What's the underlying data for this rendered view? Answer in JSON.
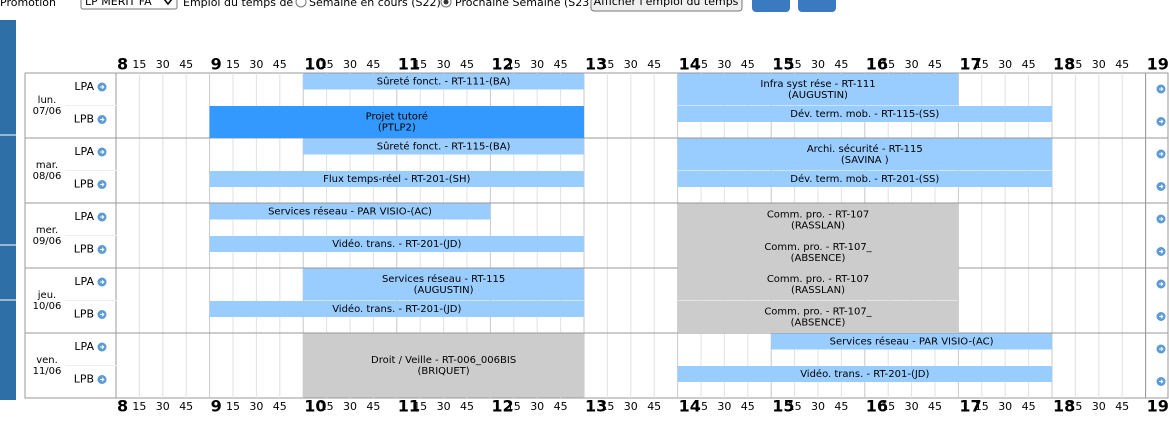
{
  "header": {
    "promotion_label": "Promotion",
    "promotion_value": "LP MERIT FA",
    "schedule_label": "Emploi du temps de :",
    "option_current": "Semaine en cours (S22)",
    "option_next": "Prochaine Semaine (S23)",
    "button": "Afficher l'emploi du temps"
  },
  "scale": [
    "8",
    "15",
    "30",
    "45",
    "9",
    "15",
    "30",
    "45",
    "10",
    "15",
    "30",
    "45",
    "11",
    "15",
    "30",
    "45",
    "12",
    "15",
    "30",
    "45",
    "13",
    "15",
    "30",
    "45",
    "14",
    "15",
    "30",
    "45",
    "15",
    "15",
    "30",
    "45",
    "16",
    "15",
    "30",
    "45",
    "17",
    "15",
    "30",
    "45",
    "18",
    "15",
    "30",
    "45",
    "19"
  ],
  "days": [
    {
      "name": "lun.",
      "date": "07/06",
      "groups": [
        "LPA",
        "LPB"
      ]
    },
    {
      "name": "mar.",
      "date": "08/06",
      "groups": [
        "LPA",
        "LPB"
      ]
    },
    {
      "name": "mer.",
      "date": "09/06",
      "groups": [
        "LPA",
        "LPB"
      ]
    },
    {
      "name": "jeu.",
      "date": "10/06",
      "groups": [
        "LPA",
        "LPB"
      ]
    },
    {
      "name": "ven.",
      "date": "11/06",
      "groups": [
        "LPA",
        "LPB"
      ]
    }
  ],
  "events": [
    {
      "lines": [
        "Sûreté fonct. - RT-111-(BA)"
      ]
    },
    {
      "lines": [
        "Infra syst rése - RT-111",
        "(AUGUSTIN)"
      ]
    },
    {
      "lines": [
        "Projet tutoré",
        "(PTLP2)"
      ]
    },
    {
      "lines": [
        "Dév. term. mob. - RT-115-(SS)"
      ]
    },
    {
      "lines": [
        "Sûreté fonct. - RT-115-(BA)"
      ]
    },
    {
      "lines": [
        "Archi. sécurité - RT-115",
        "(SAVINA )"
      ]
    },
    {
      "lines": [
        "Flux temps-réel - RT-201-(SH)"
      ]
    },
    {
      "lines": [
        "Dév. term. mob. - RT-201-(SS)"
      ]
    },
    {
      "lines": [
        "Services réseau - PAR VISIO-(AC)"
      ]
    },
    {
      "lines": [
        "Comm. pro. - RT-107",
        "(RASSLAN)"
      ]
    },
    {
      "lines": [
        "Vidéo. trans. - RT-201-(JD)"
      ]
    },
    {
      "lines": [
        "Comm. pro. - RT-107_",
        "(ABSENCE)"
      ]
    },
    {
      "lines": [
        "Services réseau - RT-115",
        "(AUGUSTIN)"
      ]
    },
    {
      "lines": [
        "Comm. pro. - RT-107",
        "(RASSLAN)"
      ]
    },
    {
      "lines": [
        "Vidéo. trans. - RT-201-(JD)"
      ]
    },
    {
      "lines": [
        "Comm. pro. - RT-107_",
        "(ABSENCE)"
      ]
    },
    {
      "lines": [
        "Droit / Veille - RT-006_006BIS",
        "(BRIQUET)"
      ]
    },
    {
      "lines": [
        "Services réseau - PAR VISIO-(AC)"
      ]
    },
    {
      "lines": [
        "Vidéo. trans. - RT-201-(JD)"
      ]
    }
  ]
}
